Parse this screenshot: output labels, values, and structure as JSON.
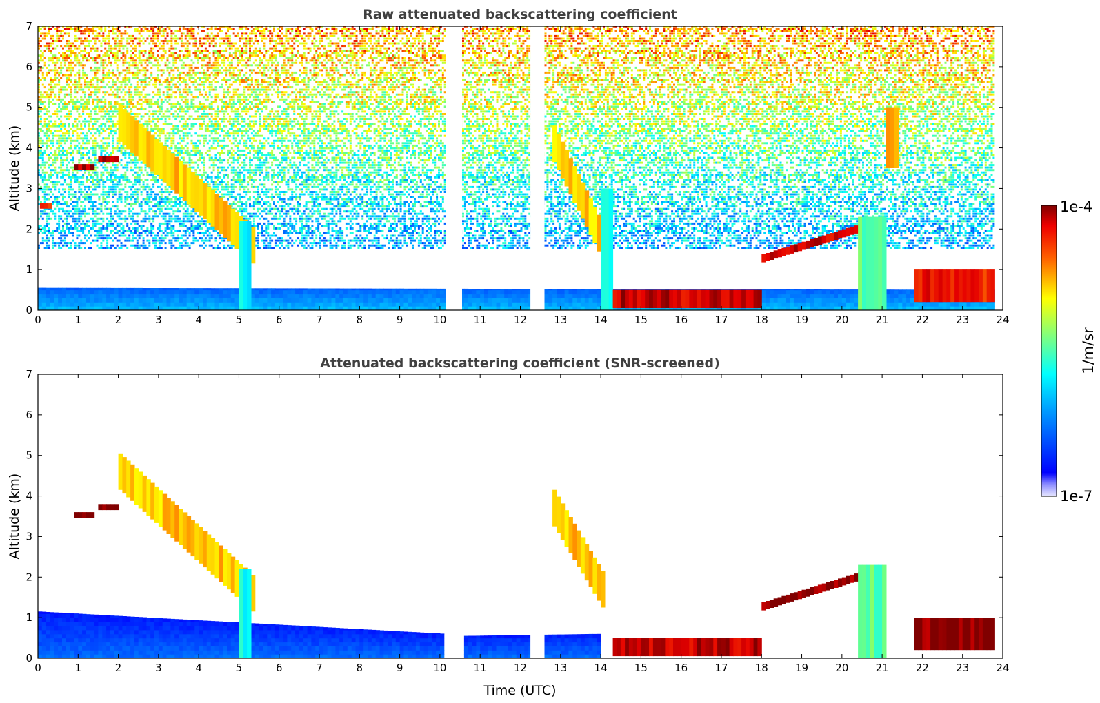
{
  "chart_data": [
    {
      "type": "heatmap",
      "title": "Raw attenuated backscattering coefficient",
      "xlabel": "",
      "ylabel": "Altitude (km)",
      "xlim": [
        0,
        24
      ],
      "ylim": [
        0,
        7
      ],
      "x_ticks": [
        "0",
        "1",
        "2",
        "3",
        "4",
        "5",
        "6",
        "7",
        "8",
        "9",
        "10",
        "11",
        "12",
        "13",
        "14",
        "15",
        "16",
        "17",
        "18",
        "19",
        "20",
        "21",
        "22",
        "23",
        "24"
      ],
      "y_ticks": [
        "0",
        "1",
        "2",
        "3",
        "4",
        "5",
        "6",
        "7"
      ],
      "data_gaps_utc": [
        [
          10.15,
          10.55
        ],
        [
          12.25,
          12.6
        ]
      ],
      "features": [
        {
          "kind": "boundary_layer",
          "time_utc": [
            0,
            23.8
          ],
          "top_km": [
            0.55,
            0.5
          ],
          "level": 0.25
        },
        {
          "kind": "noise_background",
          "time_utc": [
            0,
            23.8
          ],
          "alt_km": [
            1.5,
            7
          ],
          "level": 0.6
        },
        {
          "kind": "layer",
          "time_utc": [
            0.9,
            1.4
          ],
          "alt_km": [
            3.45,
            3.6
          ],
          "level": 0.97
        },
        {
          "kind": "layer",
          "time_utc": [
            1.5,
            2.05
          ],
          "alt_km": [
            3.65,
            3.8
          ],
          "level": 0.97
        },
        {
          "kind": "layer",
          "time_utc": [
            0.05,
            0.35
          ],
          "alt_km": [
            2.5,
            2.65
          ],
          "level": 0.9
        },
        {
          "kind": "cloud_descending",
          "time_utc": [
            2.0,
            5.4
          ],
          "alt_km": [
            1.5,
            4.5
          ],
          "level": 0.75
        },
        {
          "kind": "precipitation",
          "time_utc": [
            5.0,
            5.3
          ],
          "alt_km": [
            0,
            2.2
          ],
          "level": 0.45
        },
        {
          "kind": "cloud_descending",
          "time_utc": [
            12.8,
            14.1
          ],
          "alt_km": [
            1.6,
            4.0
          ],
          "level": 0.75
        },
        {
          "kind": "precipitation",
          "time_utc": [
            14.0,
            14.3
          ],
          "alt_km": [
            0,
            3.0
          ],
          "level": 0.45
        },
        {
          "kind": "fog_surface_layer",
          "time_utc": [
            14.3,
            18.0
          ],
          "alt_km": [
            0.05,
            0.5
          ],
          "level": 0.95
        },
        {
          "kind": "rising_cloud_top",
          "time_utc": [
            18.0,
            20.7
          ],
          "alt_km": [
            1.3,
            2.1
          ],
          "level": 0.95
        },
        {
          "kind": "precipitation",
          "time_utc": [
            20.4,
            21.1
          ],
          "alt_km": [
            0,
            2.3
          ],
          "level": 0.55
        },
        {
          "kind": "cloud",
          "time_utc": [
            21.1,
            21.4
          ],
          "alt_km": [
            3.5,
            5.0
          ],
          "level": 0.8
        },
        {
          "kind": "low_layer",
          "time_utc": [
            21.8,
            23.8
          ],
          "alt_km": [
            0.2,
            1.0
          ],
          "level": 0.9
        }
      ]
    },
    {
      "type": "heatmap",
      "title": "Attenuated backscattering coefficient (SNR-screened)",
      "xlabel": "Time (UTC)",
      "ylabel": "Altitude (km)",
      "xlim": [
        0,
        24
      ],
      "ylim": [
        0,
        7
      ],
      "x_ticks": [
        "0",
        "1",
        "2",
        "3",
        "4",
        "5",
        "6",
        "7",
        "8",
        "9",
        "10",
        "11",
        "12",
        "13",
        "14",
        "15",
        "16",
        "17",
        "18",
        "19",
        "20",
        "21",
        "22",
        "23",
        "24"
      ],
      "y_ticks": [
        "0",
        "1",
        "2",
        "3",
        "4",
        "5",
        "6",
        "7"
      ],
      "data_gaps_utc": [
        [
          10.15,
          10.55
        ],
        [
          12.25,
          12.6
        ]
      ],
      "features": [
        {
          "kind": "boundary_layer",
          "time_utc": [
            0,
            10.1
          ],
          "top_km": [
            1.15,
            0.6
          ],
          "level": 0.15
        },
        {
          "kind": "boundary_layer",
          "time_utc": [
            10.6,
            14.0
          ],
          "top_km": [
            0.55,
            0.6
          ],
          "level": 0.15
        },
        {
          "kind": "layer",
          "time_utc": [
            0.9,
            1.4
          ],
          "alt_km": [
            3.45,
            3.6
          ],
          "level": 1.0
        },
        {
          "kind": "layer",
          "time_utc": [
            1.5,
            2.05
          ],
          "alt_km": [
            3.65,
            3.8
          ],
          "level": 1.0
        },
        {
          "kind": "cloud_descending",
          "time_utc": [
            2.0,
            5.4
          ],
          "alt_km": [
            1.5,
            4.5
          ],
          "level": 0.75
        },
        {
          "kind": "precipitation",
          "time_utc": [
            5.0,
            5.3
          ],
          "alt_km": [
            0,
            2.2
          ],
          "level": 0.45
        },
        {
          "kind": "cloud_descending",
          "time_utc": [
            12.8,
            14.1
          ],
          "alt_km": [
            1.6,
            3.6
          ],
          "level": 0.75
        },
        {
          "kind": "fog_surface_layer",
          "time_utc": [
            14.3,
            18.0
          ],
          "alt_km": [
            0.05,
            0.5
          ],
          "level": 0.95
        },
        {
          "kind": "rising_cloud_top",
          "time_utc": [
            18.0,
            20.7
          ],
          "alt_km": [
            1.3,
            2.1
          ],
          "level": 1.0
        },
        {
          "kind": "precipitation",
          "time_utc": [
            20.4,
            21.1
          ],
          "alt_km": [
            0,
            2.3
          ],
          "level": 0.55
        },
        {
          "kind": "low_layer",
          "time_utc": [
            21.8,
            23.8
          ],
          "alt_km": [
            0.2,
            1.0
          ],
          "level": 1.0
        }
      ]
    }
  ],
  "colorbar": {
    "max_label": "1e-4",
    "min_label": "1e-7",
    "unit_label": "1/m/sr",
    "colormap": "jet"
  }
}
